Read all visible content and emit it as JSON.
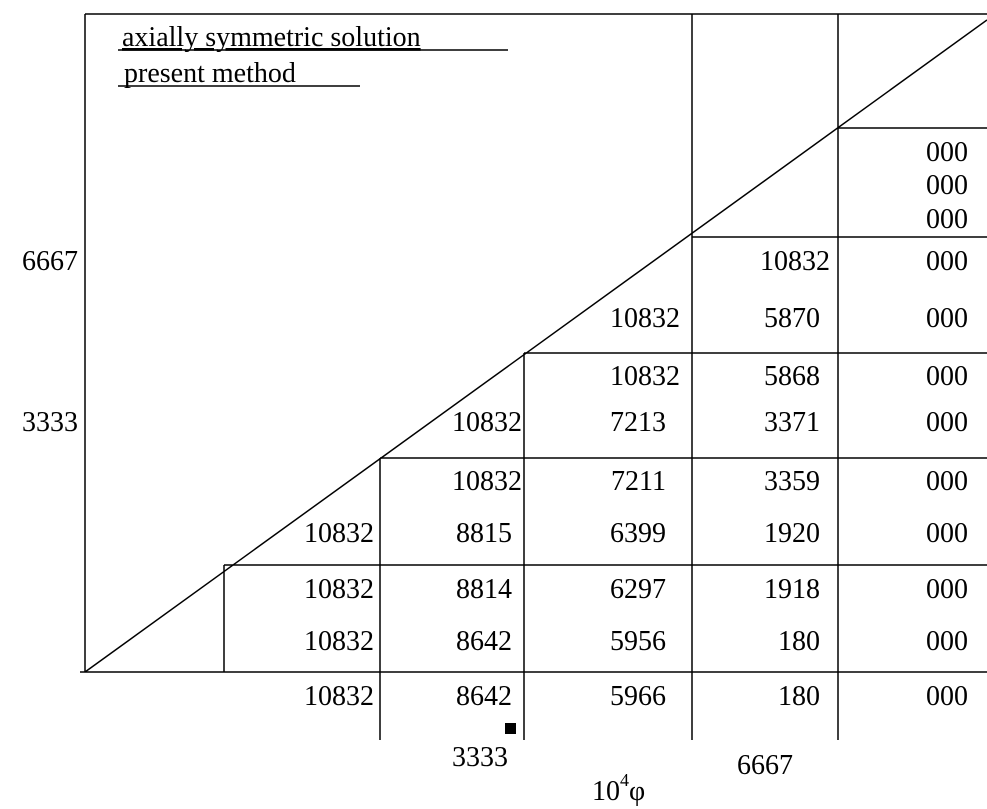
{
  "legend": {
    "line1": "axially symmetric  solution",
    "line2": "present  method"
  },
  "axes": {
    "y_ticks": [
      "6667",
      "3333"
    ],
    "x_ticks": [
      "3333",
      "6667"
    ],
    "x_label_base": "10",
    "x_label_exp": "4",
    "x_label_symbol": "φ"
  },
  "cells": {
    "r7c5": "000",
    "r8c5": "000",
    "r9c5": "000",
    "r10c4": "10832",
    "r10c5": "000",
    "r11c3": "10832",
    "r11c4": "5870",
    "r11c5": "000",
    "r12c3": "10832",
    "r12c4": "5868",
    "r12c5": "000",
    "r13c2": "10832",
    "r13c3": "7213",
    "r13c4": "3371",
    "r13c5": "000",
    "r14c2": "10832",
    "r14c3": "7211",
    "r14c4": "3359",
    "r14c5": "000",
    "r15c1": "10832",
    "r15c2": "8815",
    "r15c3": "6399",
    "r15c4": "1920",
    "r15c5": "000",
    "r16c1": "10832",
    "r16c2": "8814",
    "r16c3": "6297",
    "r16c4": "1918",
    "r16c5": "000",
    "r17c1": "10832",
    "r17c2": "8642",
    "r17c3": "5956",
    "r17c4": "180",
    "r17c5": "000",
    "r18c1": "10832",
    "r18c2": "8642",
    "r18c3": "5966",
    "r18c4": "180",
    "r18c5": "000"
  }
}
